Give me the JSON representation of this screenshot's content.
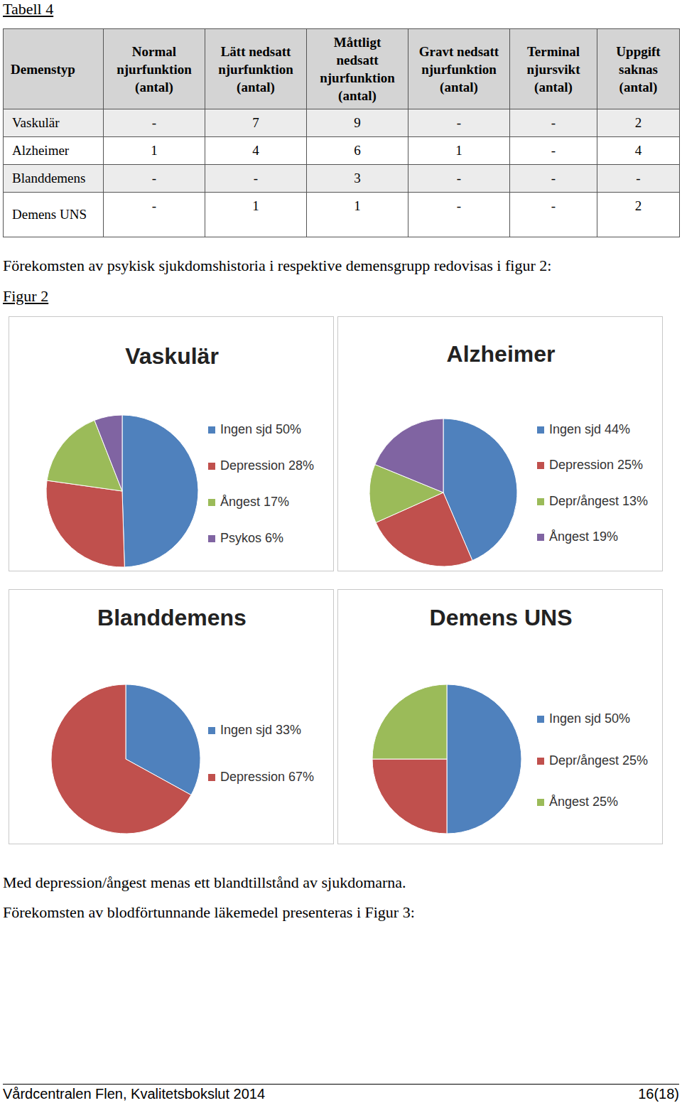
{
  "header": {
    "title": "Tabell 4"
  },
  "table": {
    "columns": [
      "Demenstyp",
      "Normal njurfunktion (antal)",
      "Lätt nedsatt njurfunktion (antal)",
      "Måttligt nedsatt njurfunktion (antal)",
      "Gravt nedsatt njurfunktion (antal)",
      "Terminal njursvikt (antal)",
      "Uppgift saknas (antal)"
    ],
    "rows": [
      [
        "Vaskulär",
        "-",
        "7",
        "9",
        "-",
        "-",
        "2"
      ],
      [
        "Alzheimer",
        "1",
        "4",
        "6",
        "1",
        "-",
        "4"
      ],
      [
        "Blanddemens",
        "-",
        "-",
        "3",
        "-",
        "-",
        "-"
      ],
      [
        "Demens UNS",
        "-",
        "1",
        "1",
        "-",
        "-",
        "2"
      ]
    ]
  },
  "text": {
    "intro": "Förekomsten av psykisk sjukdomshistoria i respektive demensgrupp redovisas i figur 2:",
    "figure_label": "Figur 2",
    "note": "Med depression/ångest menas ett blandtillstånd av sjukdomarna.",
    "next": "Förekomsten av blodförtunnande läkemedel presenteras i Figur 3:"
  },
  "chart_data": [
    {
      "type": "pie",
      "title": "Vaskulär",
      "categories": [
        "Ingen sjd 50%",
        "Depression 28%",
        "Ångest 17%",
        "Psykos 6%"
      ],
      "values": [
        50,
        28,
        17,
        6
      ],
      "colors": [
        "#4f81bd",
        "#c0504d",
        "#9bbb59",
        "#8064a2"
      ]
    },
    {
      "type": "pie",
      "title": "Alzheimer",
      "categories": [
        "Ingen sjd 44%",
        "Depression 25%",
        "Depr/ångest 13%",
        "Ångest 19%"
      ],
      "values": [
        44,
        25,
        13,
        19
      ],
      "colors": [
        "#4f81bd",
        "#c0504d",
        "#9bbb59",
        "#8064a2"
      ]
    },
    {
      "type": "pie",
      "title": "Blanddemens",
      "categories": [
        "Ingen sjd 33%",
        "Depression 67%"
      ],
      "values": [
        33,
        67
      ],
      "colors": [
        "#4f81bd",
        "#c0504d"
      ]
    },
    {
      "type": "pie",
      "title": "Demens UNS",
      "categories": [
        "Ingen sjd 50%",
        "Depr/ångest 25%",
        "Ångest 25%"
      ],
      "values": [
        50,
        25,
        25
      ],
      "colors": [
        "#4f81bd",
        "#c0504d",
        "#9bbb59"
      ]
    }
  ],
  "footer": {
    "left": "Vårdcentralen Flen, Kvalitetsbokslut 2014",
    "right": "16(18)"
  }
}
